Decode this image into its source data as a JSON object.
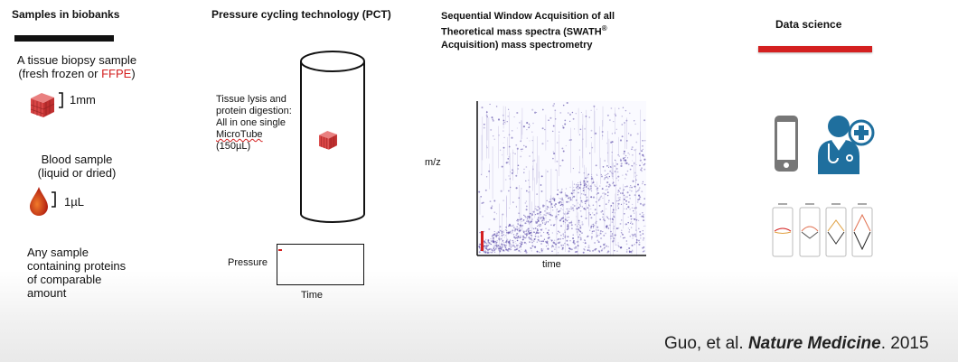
{
  "biobank": {
    "title": "Samples in biobanks",
    "tissue_line1": "A tissue biopsy sample",
    "tissue_line2_prefix": "(fresh frozen or ",
    "tissue_line2_ffpe": "FFPE",
    "tissue_line2_suffix": ")",
    "tissue_scale": "1mm",
    "blood_line1": "Blood sample",
    "blood_line2": "(liquid or dried)",
    "blood_scale": "1µL",
    "any_line1": "Any sample",
    "any_line2": "containing proteins",
    "any_line3": "of comparable",
    "any_line4": "amount"
  },
  "pct": {
    "title": "Pressure cycling technology (PCT)",
    "desc_line1": "Tissue lysis and",
    "desc_line2": "protein digestion:",
    "desc_line3": "All in one single",
    "desc_line4": "MicroTube",
    "desc_line5": "(150µL)",
    "pressure_label": "Pressure",
    "time_label": "Time"
  },
  "swath": {
    "title_line1": "Sequential Window Acquisition of all",
    "title_line2_pre": "Theoretical mass spectra (SWATH",
    "title_line2_sup": "®",
    "title_line3": "Acquisition) mass spectrometry",
    "ylabel": "m/z",
    "xlabel": "time"
  },
  "data_science": {
    "title": "Data science"
  },
  "citation": {
    "authors": "Guo, et al. ",
    "journal": "Nature Medicine",
    "year": ". 2015"
  },
  "colors": {
    "bar_black": "#111111",
    "bar_red": "#d42020",
    "icon_blue": "#1f6f9e",
    "scatter": "#5a4aa8"
  },
  "icons": [
    "tissue-cube-icon",
    "blood-drop-icon",
    "microtube-cylinder-icon",
    "smartphone-icon",
    "doctor-plus-icon",
    "peak-panels-icon"
  ]
}
